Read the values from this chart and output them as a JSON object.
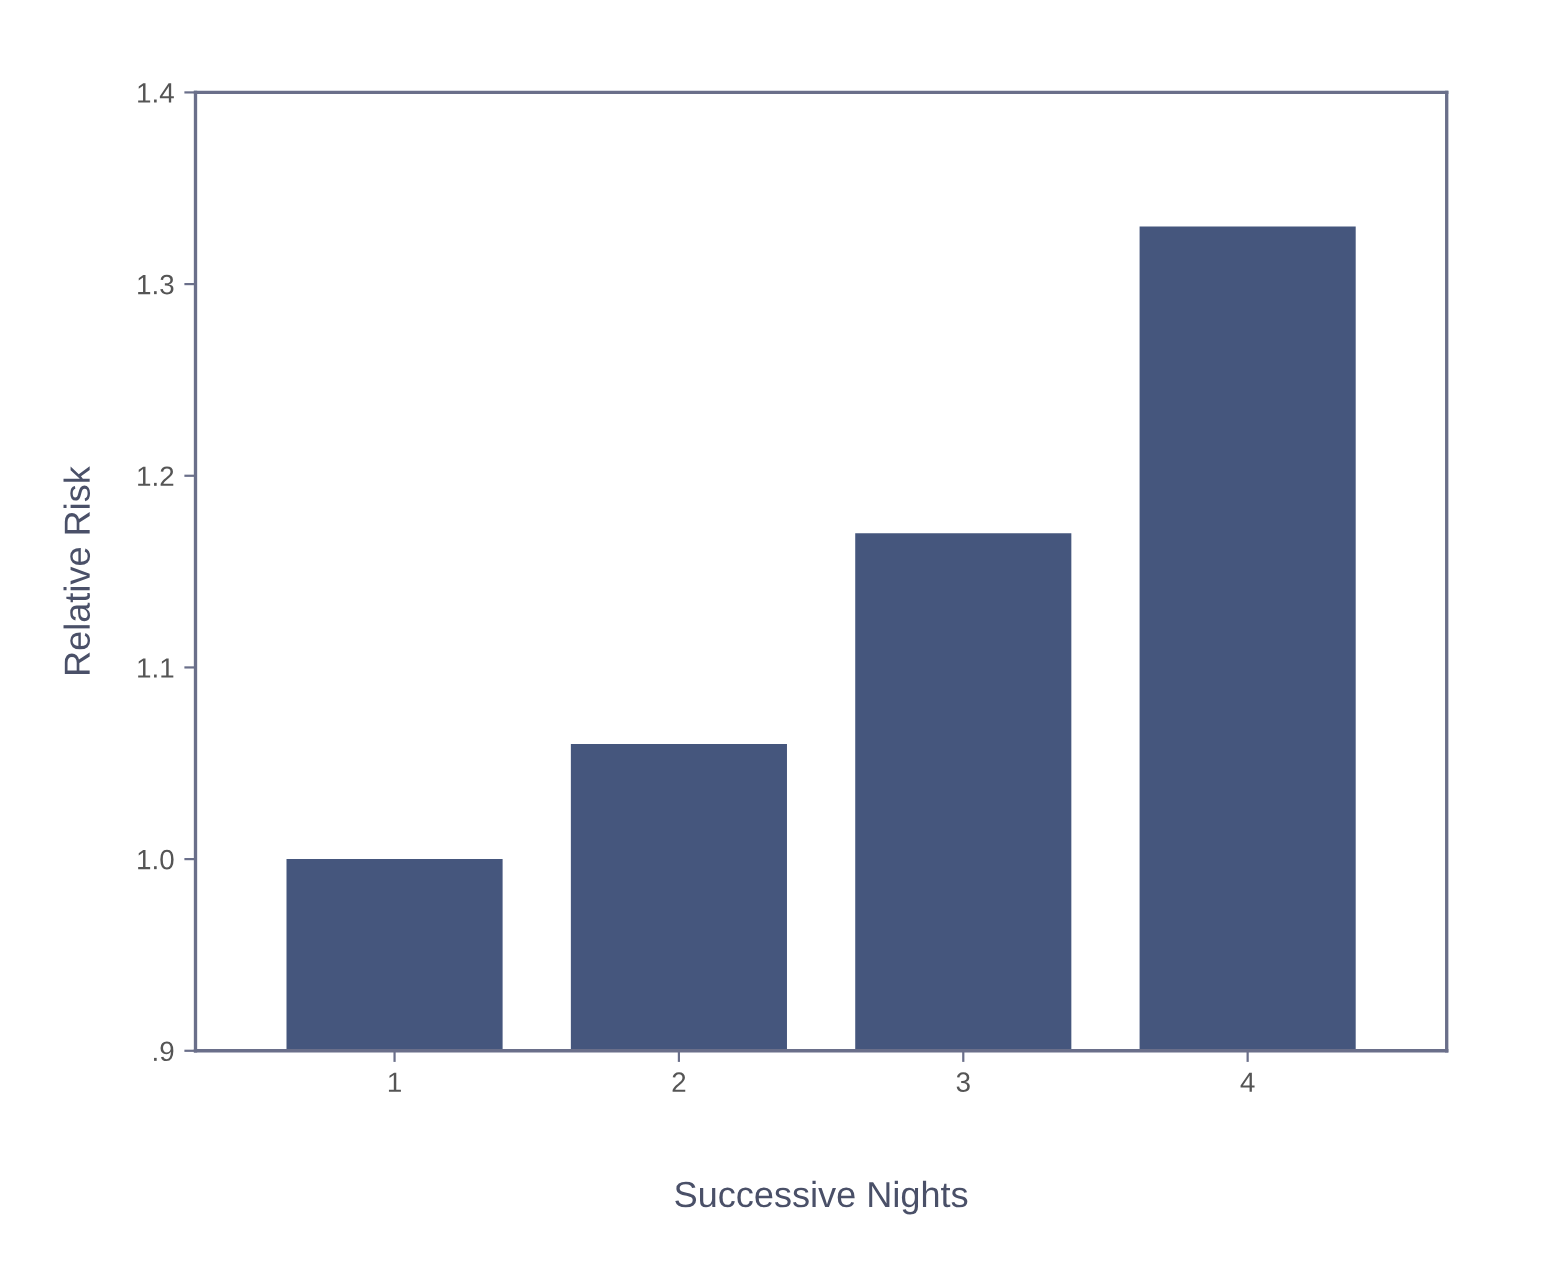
{
  "chart_data": {
    "type": "bar",
    "xlabel": "Successive Nights",
    "ylabel": "Relative Risk",
    "categories": [
      "1",
      "2",
      "3",
      "4"
    ],
    "values": [
      1.0,
      1.06,
      1.17,
      1.33
    ],
    "color": "#45567d",
    "ylim": [
      0.9,
      1.4
    ],
    "yticks": [
      {
        "value": 0.9,
        "label": ".9"
      },
      {
        "value": 1.0,
        "label": "1.0"
      },
      {
        "value": 1.1,
        "label": "1.1"
      },
      {
        "value": 1.2,
        "label": "1.2"
      },
      {
        "value": 1.3,
        "label": "1.3"
      },
      {
        "value": 1.4,
        "label": "1.4"
      }
    ],
    "grid": false
  }
}
